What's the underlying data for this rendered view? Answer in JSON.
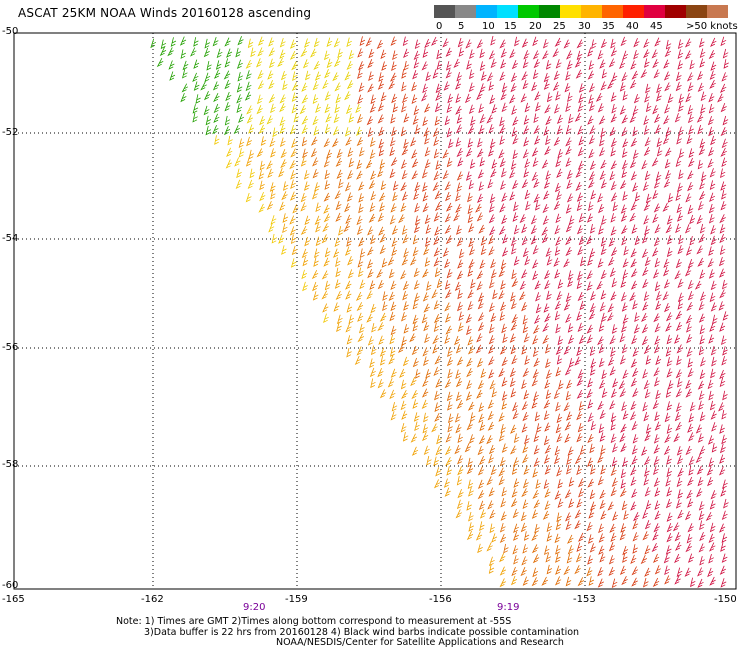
{
  "title": "ASCAT 25KM NOAA Winds 20160128 ascending",
  "legend": {
    "colors": [
      "#555555",
      "#888888",
      "#00b4ff",
      "#00e0ff",
      "#00c800",
      "#008800",
      "#ffe000",
      "#ffb400",
      "#ff6400",
      "#ff2000",
      "#e00040",
      "#a00000",
      "#8b4513",
      "#c87850",
      "#ff00ff",
      "#b000b0",
      "#6000a0",
      "#3c0064"
    ],
    "labels": [
      "0",
      "5",
      "10",
      "15",
      "20",
      "25",
      "30",
      "35",
      "40",
      "45"
    ],
    "unit_label": ">50 knots"
  },
  "map": {
    "lat_labels": [
      "-50",
      "-52",
      "-54",
      "-56",
      "-58",
      "-60"
    ],
    "lon_labels": [
      "-165",
      "-162",
      "-159",
      "-156",
      "-153",
      "-150"
    ],
    "time_labels": [
      "9:20",
      "9:19"
    ]
  },
  "notes": {
    "line1": "Note: 1) Times are GMT 2)Times along bottom correspond to measurement at -55S",
    "line2": "3)Data buffer is 22 hrs from 20160128 4) Black wind barbs indicate possible contamination",
    "line3": "NOAA/NESDIS/Center for Satellite Applications and Research"
  }
}
